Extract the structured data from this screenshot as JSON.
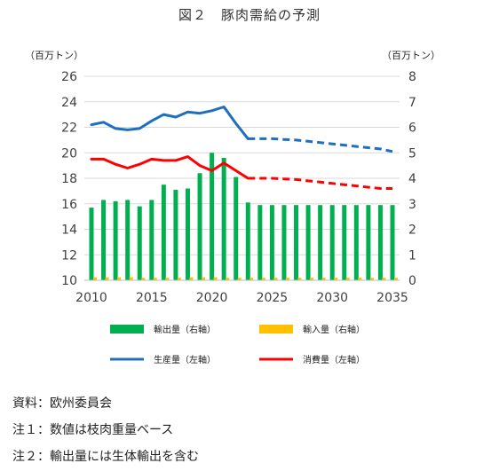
{
  "title": "図２　豚肉需給の予測",
  "notes": {
    "source": "資料：欧州委員会",
    "note1": "注１：数値は枝肉重量ベース",
    "note2": "注２：輸出量には生体輸出を含む"
  },
  "chart_data": {
    "type": "bar+line",
    "x_ticks": [
      "2010",
      "2015",
      "2020",
      "2025",
      "2030",
      "2035"
    ],
    "left_axis": {
      "unit": "（百万トン）",
      "ticks": [
        "10",
        "12",
        "14",
        "16",
        "18",
        "20",
        "22",
        "24",
        "26"
      ],
      "ylim": [
        10,
        26
      ]
    },
    "right_axis": {
      "unit": "（百万トン）",
      "ticks": [
        "0",
        "1",
        "2",
        "3",
        "4",
        "5",
        "6",
        "7",
        "8"
      ],
      "ylim": [
        0,
        8
      ]
    },
    "years": [
      2010,
      2011,
      2012,
      2013,
      2014,
      2015,
      2016,
      2017,
      2018,
      2019,
      2020,
      2021,
      2022,
      2023,
      2024,
      2025,
      2026,
      2027,
      2028,
      2029,
      2030,
      2031,
      2032,
      2033,
      2034,
      2035
    ],
    "series": [
      {
        "name": "輸出量（右軸）",
        "kind": "bar",
        "axis": "right",
        "color": "#00b050",
        "values": [
          2.85,
          3.15,
          3.1,
          3.15,
          2.9,
          3.15,
          3.75,
          3.55,
          3.6,
          4.2,
          5.0,
          4.8,
          4.05,
          3.05,
          2.95,
          2.95,
          2.95,
          2.95,
          2.95,
          2.95,
          2.95,
          2.95,
          2.95,
          2.95,
          2.95,
          2.95
        ]
      },
      {
        "name": "輸入量（右軸）",
        "kind": "bar",
        "axis": "right",
        "color": "#ffc000",
        "values": [
          0.12,
          0.12,
          0.12,
          0.12,
          0.1,
          0.1,
          0.1,
          0.1,
          0.12,
          0.12,
          0.12,
          0.1,
          0.1,
          0.1,
          0.1,
          0.1,
          0.1,
          0.1,
          0.1,
          0.1,
          0.1,
          0.1,
          0.1,
          0.1,
          0.1,
          0.1
        ]
      },
      {
        "name": "生産量（左軸）",
        "kind": "line",
        "axis": "left",
        "color": "#1f6fbf",
        "actual_until": 2023,
        "values": [
          22.2,
          22.4,
          21.9,
          21.8,
          21.9,
          22.5,
          23.0,
          22.8,
          23.2,
          23.1,
          23.3,
          23.6,
          22.3,
          21.1,
          21.1,
          21.1,
          21.05,
          21.0,
          20.9,
          20.8,
          20.7,
          20.6,
          20.5,
          20.4,
          20.3,
          20.1
        ]
      },
      {
        "name": "消費量（左軸）",
        "kind": "line",
        "axis": "left",
        "color": "#ff0000",
        "actual_until": 2023,
        "values": [
          19.5,
          19.5,
          19.1,
          18.8,
          19.1,
          19.5,
          19.4,
          19.4,
          19.7,
          19.0,
          18.6,
          19.2,
          18.6,
          18.0,
          18.0,
          18.0,
          17.95,
          17.9,
          17.8,
          17.7,
          17.6,
          17.5,
          17.4,
          17.3,
          17.2,
          17.2
        ]
      }
    ],
    "grid": true,
    "legend_position": "bottom"
  }
}
